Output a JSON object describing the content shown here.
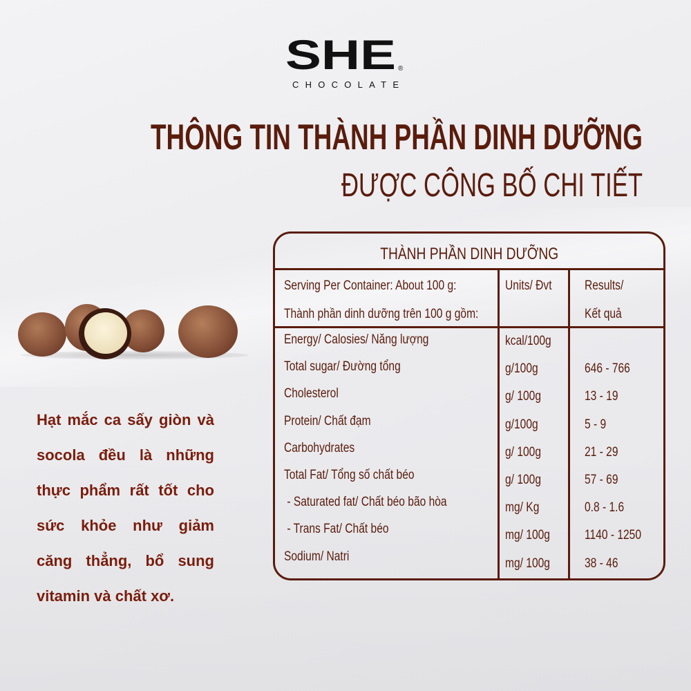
{
  "logo": {
    "mark": "SHE",
    "registered": "®",
    "subtitle": "CHOCOLATE"
  },
  "header": {
    "title": "THÔNG TIN THÀNH PHẦN DINH DƯỠNG",
    "subtitle": "ĐƯỢC CÔNG BỐ CHI TIẾT"
  },
  "colors": {
    "brand_brown": "#5a1c0c",
    "paragraph_brown": "#7a1d0c",
    "background": "#ececef"
  },
  "description": {
    "lines": [
      "Hạt mắc ca  sấy giòn và",
      "socola đều là những",
      "thực phẩm rất tốt cho",
      "sức khỏe như giảm",
      "căng thẳng, bổ sung",
      "vitamin và chất xơ."
    ]
  },
  "table": {
    "title": "THÀNH PHẦN DINH DƯỠNG",
    "header": {
      "serving_line1": "Serving Per Container: About 100 g:",
      "serving_line2": "Thành phần dinh dưỡng trên 100 g gồm:",
      "units": "Units/ Đvt",
      "results_line1": "Results/",
      "results_line2": "Kết quả"
    },
    "rows": [
      {
        "label": "Energy/ Calosies/ Năng lượng",
        "unit": "kcal/100g",
        "result": ""
      },
      {
        "label": "Total sugar/ Đường tổng",
        "unit": "g/100g",
        "result": "646 - 766"
      },
      {
        "label": "Cholesterol",
        "unit": "g/ 100g",
        "result": "13 - 19"
      },
      {
        "label": "Protein/ Chất đạm",
        "unit": "g/100g",
        "result": "5 - 9"
      },
      {
        "label": "Carbohydrates",
        "unit": "g/ 100g",
        "result": "21 - 29"
      },
      {
        "label": "Total Fat/ Tổng số chất béo",
        "unit": "g/ 100g",
        "result": "57 - 69"
      },
      {
        "label": " - Saturated fat/ Chất béo bão hòa",
        "unit": "mg/ Kg",
        "result": "0.8 - 1.6"
      },
      {
        "label": " - Trans Fat/ Chất béo",
        "unit": "mg/ 100g",
        "result": "1140 - 1250"
      },
      {
        "label": "Sodium/ Natri",
        "unit": "mg/ 100g",
        "result": "38 - 46"
      }
    ]
  }
}
